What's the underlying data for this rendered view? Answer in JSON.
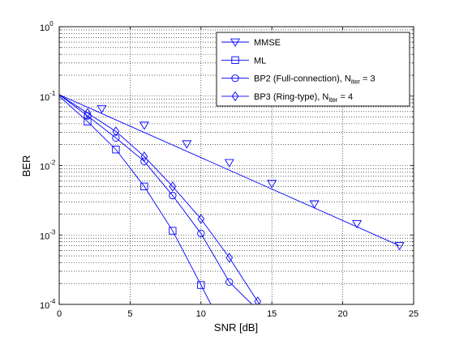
{
  "chart_data": {
    "type": "line",
    "title": "",
    "xlabel": "SNR [dB]",
    "ylabel": "BER",
    "xlim": [
      0,
      25
    ],
    "ylim": [
      0.0001,
      1
    ],
    "yscale": "log",
    "grid": true,
    "legend_position": "top-right",
    "x_ticks": [
      0,
      5,
      10,
      15,
      20,
      25
    ],
    "y_ticks": [
      {
        "value": 1,
        "base": "10",
        "exp": "0"
      },
      {
        "value": 0.1,
        "base": "10",
        "exp": "-1"
      },
      {
        "value": 0.01,
        "base": "10",
        "exp": "-2"
      },
      {
        "value": 0.001,
        "base": "10",
        "exp": "-3"
      },
      {
        "value": 0.0001,
        "base": "10",
        "exp": "-4"
      }
    ],
    "series": [
      {
        "name": "MMSE",
        "marker": "triangle-down",
        "color": "#0000ff",
        "line": [
          [
            0,
            0.105
          ],
          [
            24,
            0.0007
          ]
        ],
        "points": [
          [
            3,
            0.066
          ],
          [
            6,
            0.038
          ],
          [
            9,
            0.0205
          ],
          [
            12,
            0.011
          ],
          [
            15,
            0.0055
          ],
          [
            18,
            0.0028
          ],
          [
            21,
            0.00145
          ],
          [
            24,
            0.0007
          ]
        ]
      },
      {
        "name": "ML",
        "marker": "square",
        "color": "#0000ff",
        "line": [
          [
            0,
            0.1
          ],
          [
            2,
            0.043
          ],
          [
            4,
            0.017
          ],
          [
            6,
            0.005
          ],
          [
            8,
            0.00115
          ],
          [
            10,
            0.00019
          ],
          [
            10.7,
            0.0001
          ]
        ],
        "points": [
          [
            2,
            0.043
          ],
          [
            4,
            0.017
          ],
          [
            6,
            0.005
          ],
          [
            8,
            0.00115
          ],
          [
            10,
            0.00019
          ]
        ]
      },
      {
        "name": "BP2 (Full-connection), N",
        "name_sub": "iter",
        "name_suffix": " = 3",
        "marker": "circle",
        "color": "#0000ff",
        "line": [
          [
            0,
            0.105
          ],
          [
            2,
            0.052
          ],
          [
            4,
            0.025
          ],
          [
            6,
            0.0115
          ],
          [
            8,
            0.0037
          ],
          [
            10,
            0.00105
          ],
          [
            12,
            0.00021
          ],
          [
            13.6,
            0.0001
          ]
        ],
        "points": [
          [
            2,
            0.052
          ],
          [
            4,
            0.025
          ],
          [
            6,
            0.0115
          ],
          [
            8,
            0.0037
          ],
          [
            10,
            0.00105
          ],
          [
            12,
            0.00021
          ]
        ]
      },
      {
        "name": "BP3 (Ring-type), N",
        "name_sub": "iter",
        "name_suffix": " = 4",
        "marker": "diamond",
        "color": "#0000ff",
        "line": [
          [
            0,
            0.105
          ],
          [
            2,
            0.057
          ],
          [
            4,
            0.031
          ],
          [
            6,
            0.0135
          ],
          [
            8,
            0.005
          ],
          [
            10,
            0.0017
          ],
          [
            12,
            0.00047
          ],
          [
            14,
            0.00011
          ],
          [
            14.1,
            0.0001
          ]
        ],
        "points": [
          [
            2,
            0.057
          ],
          [
            4,
            0.031
          ],
          [
            6,
            0.0135
          ],
          [
            8,
            0.005
          ],
          [
            10,
            0.0017
          ],
          [
            12,
            0.00047
          ],
          [
            14,
            0.00011
          ]
        ]
      }
    ]
  }
}
